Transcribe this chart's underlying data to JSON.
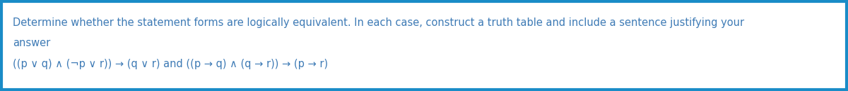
{
  "bg_color": "#ffffff",
  "border_color": "#1a8cc7",
  "border_linewidth": 3.0,
  "line1": "Determine whether the statement forms are logically equivalent. In each case, construct a truth table and include a sentence justifying your",
  "line2": "answer",
  "line3": "((p ∨ q) ∧ (¬p ∨ r)) → (q ∨ r) and ((p → q) ∧ (q → r)) → (p → r)",
  "text_color": "#3d7ab5",
  "font_size_main": 10.5,
  "font_size_formula": 10.5,
  "fig_width": 12.0,
  "fig_height": 1.3
}
